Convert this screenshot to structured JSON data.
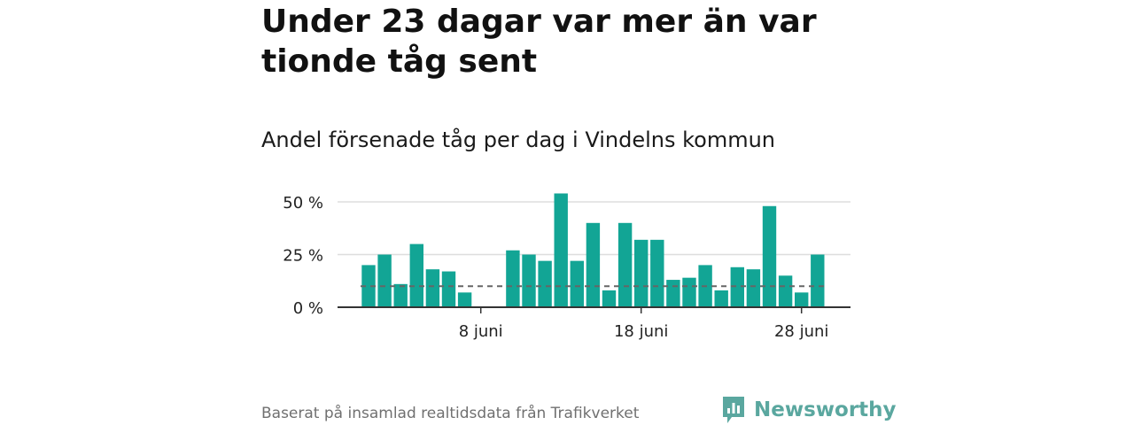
{
  "title": "Under 23 dagar var mer än var tionde tåg sent",
  "subtitle": "Andel försenade tåg per dag i Vindelns kommun",
  "footer": {
    "source": "Baserat på insamlad realtidsdata från Trafikverket",
    "brand": "Newsworthy"
  },
  "colors": {
    "bar": "#12a595",
    "reference_line": "#666666",
    "grid": "#dddddd",
    "axis": "#333333",
    "brand": "#5aa79f"
  },
  "chart_data": {
    "type": "bar",
    "x_unit": "day of June",
    "x": [
      1,
      2,
      3,
      4,
      5,
      6,
      7,
      8,
      9,
      10,
      11,
      12,
      13,
      14,
      15,
      16,
      17,
      18,
      19,
      20,
      21,
      22,
      23,
      24,
      25,
      26,
      27,
      28,
      29,
      30
    ],
    "values": [
      20,
      25,
      11,
      30,
      18,
      17,
      7,
      0,
      0,
      27,
      25,
      22,
      54,
      22,
      40,
      8,
      40,
      32,
      32,
      13,
      14,
      20,
      8,
      19,
      18,
      48,
      15,
      7,
      25,
      null
    ],
    "reference_line": {
      "style": "dashed",
      "value": 10
    },
    "ylim": [
      0,
      50
    ],
    "yticks": [
      0,
      25,
      50
    ],
    "ytick_labels": [
      "0 %",
      "25 %",
      "50 %"
    ],
    "xticks": [
      8,
      18,
      28
    ],
    "xtick_labels": [
      "8 juni",
      "18 juni",
      "28 juni"
    ],
    "grid": true,
    "legend": "none"
  }
}
